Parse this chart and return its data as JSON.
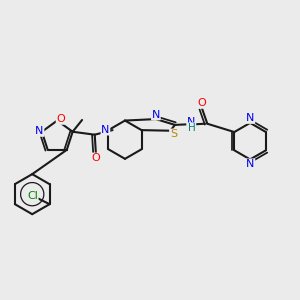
{
  "background_color": "#ebebeb",
  "bond_color": "#1a1a1a",
  "atom_colors": {
    "O": "#ff0000",
    "N": "#0000ee",
    "S": "#b8860b",
    "Cl": "#008800",
    "H": "#008080",
    "C": "#1a1a1a"
  },
  "figsize": [
    3.0,
    3.0
  ],
  "dpi": 100
}
